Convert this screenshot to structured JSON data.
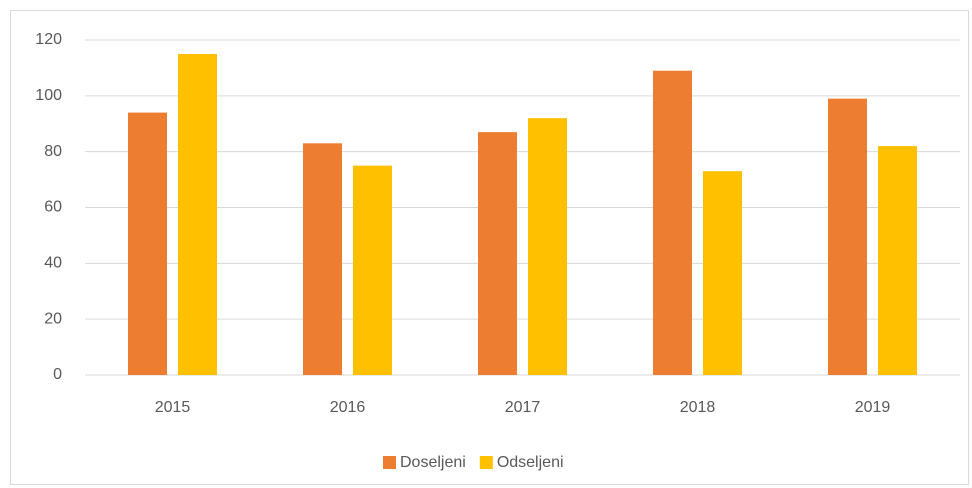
{
  "chart_data": {
    "type": "bar",
    "categories": [
      "2015",
      "2016",
      "2017",
      "2018",
      "2019"
    ],
    "series": [
      {
        "name": "Doseljeni",
        "color": "#ed7d31",
        "values": [
          94,
          83,
          87,
          109,
          99
        ]
      },
      {
        "name": "Odseljeni",
        "color": "#ffc000",
        "values": [
          115,
          75,
          92,
          73,
          82
        ]
      }
    ],
    "ylim": [
      0,
      120
    ],
    "yticks": [
      0,
      20,
      40,
      60,
      80,
      100,
      120
    ],
    "grid": true,
    "legend": "bottom"
  }
}
